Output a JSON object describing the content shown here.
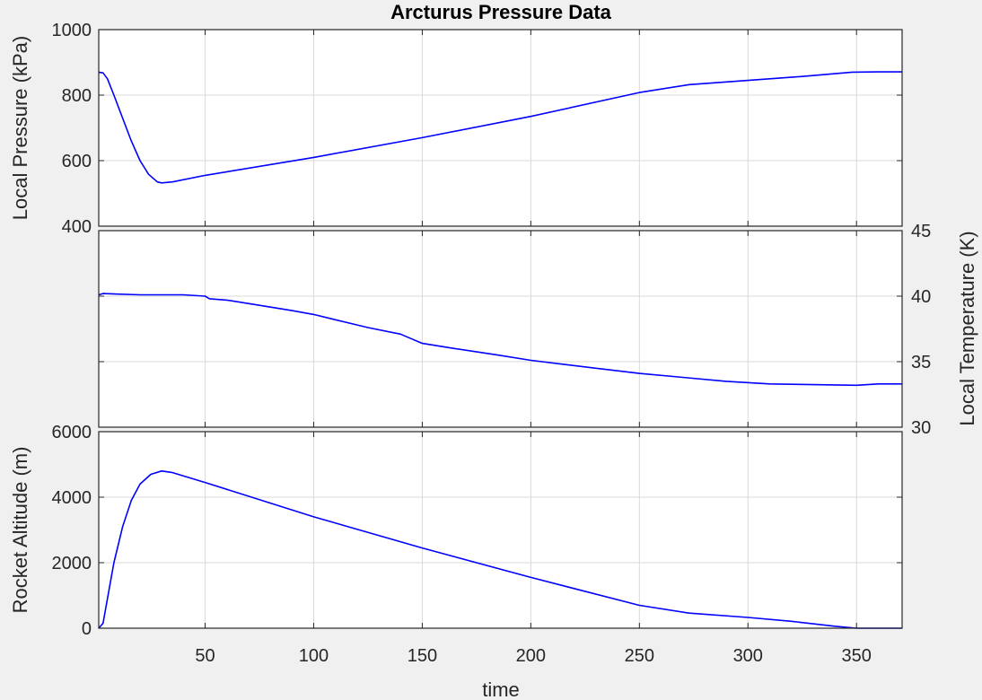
{
  "chart_data": {
    "type": "line",
    "title": "Arcturus Pressure Data",
    "xlabel": "time",
    "xlim": [
      1,
      371
    ],
    "xticks": [
      50,
      100,
      150,
      200,
      250,
      300,
      350
    ],
    "grid": true,
    "colors": {
      "line": "#0000ff",
      "grid": "#d9d9d9",
      "axes_bg": "#ffffff",
      "figure_bg": "#f0f0f0"
    },
    "panels": [
      {
        "id": "pressure",
        "ylabel": "Local Pressure (kPa)",
        "ylabel_side": "left",
        "ylim": [
          400,
          1000
        ],
        "yticks": [
          400,
          600,
          800,
          1000
        ],
        "series": [
          {
            "x": [
              1,
              3,
              5,
              8,
              12,
              16,
              20,
              24,
              28,
              30,
              35,
              50,
              100,
              150,
              200,
              250,
              273,
              300,
              325,
              348,
              360,
              371
            ],
            "y": [
              870,
              868,
              850,
              800,
              730,
              660,
              600,
              558,
              535,
              532,
              535,
              555,
              610,
              670,
              735,
              808,
              832,
              845,
              857,
              870,
              871,
              871
            ]
          }
        ]
      },
      {
        "id": "temperature",
        "ylabel": "Local Temperature (K)",
        "ylabel_side": "right",
        "ylim": [
          30,
          45
        ],
        "yticks": [
          30,
          35,
          40,
          45
        ],
        "series": [
          {
            "x": [
              1,
              3,
              20,
              40,
              50,
              52,
              60,
              75,
              90,
              100,
              110,
              125,
              140,
              150,
              165,
              185,
              200,
              215,
              230,
              250,
              270,
              290,
              310,
              330,
              350,
              360,
              371
            ],
            "y": [
              40.1,
              40.2,
              40.1,
              40.1,
              40.0,
              39.8,
              39.7,
              39.3,
              38.9,
              38.6,
              38.2,
              37.6,
              37.1,
              36.4,
              36.0,
              35.5,
              35.1,
              34.8,
              34.5,
              34.1,
              33.8,
              33.5,
              33.3,
              33.25,
              33.2,
              33.3,
              33.3
            ]
          }
        ]
      },
      {
        "id": "altitude",
        "ylabel": "Rocket Altitude (m)",
        "ylabel_side": "left",
        "ylim": [
          0,
          6000
        ],
        "yticks": [
          0,
          2000,
          4000,
          6000
        ],
        "series": [
          {
            "x": [
              1,
              3,
              5,
              8,
              12,
              16,
              20,
              25,
              30,
              35,
              50,
              100,
              150,
              200,
              250,
              273,
              300,
              320,
              340,
              350,
              360,
              371
            ],
            "y": [
              0,
              150,
              900,
              2000,
              3100,
              3900,
              4400,
              4700,
              4800,
              4750,
              4450,
              3400,
              2450,
              1550,
              700,
              460,
              330,
              210,
              60,
              0,
              0,
              0
            ]
          }
        ]
      }
    ]
  }
}
